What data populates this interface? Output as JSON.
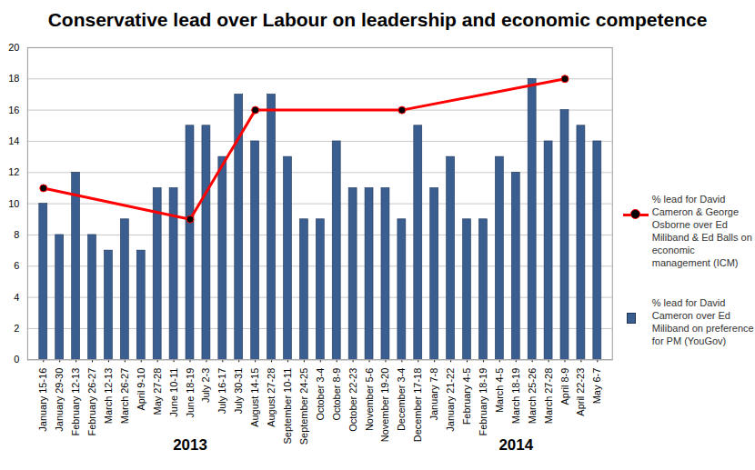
{
  "chart_data": {
    "type": "bar",
    "title": "Conservative lead over Labour on leadership and economic competence",
    "categories": [
      "January 15-16",
      "January 29-30",
      "February 12-13",
      "February 26-27",
      "March 12-13",
      "March 26-27",
      "April 9-10",
      "May 27-28",
      "June 10-11",
      "June 18-19",
      "July 2-3",
      "July 16-17",
      "July 30-31",
      "August 14-15",
      "August 27-28",
      "September 10-11",
      "September 24-25",
      "October 3-4",
      "October 8-9",
      "October 22-23",
      "November 5-6",
      "November 19-20",
      "December 3-4",
      "December 17-18",
      "January 7-8",
      "January 21-22",
      "February 4-5",
      "February 18-19",
      "March 4-5",
      "March 18-19",
      "March 25-26",
      "March 27-28",
      "April 8-9",
      "April 22-23",
      "May 6-7"
    ],
    "series": [
      {
        "name": "% lead for David Cameron & George Osborne over Ed Miliband & Ed Balls on economic management (ICM)",
        "type": "line",
        "color": "#ff0000",
        "marker": "circle",
        "values": [
          11,
          null,
          null,
          null,
          null,
          null,
          null,
          null,
          null,
          9,
          null,
          null,
          null,
          16,
          null,
          null,
          null,
          null,
          null,
          null,
          null,
          null,
          16,
          null,
          null,
          null,
          null,
          null,
          null,
          null,
          null,
          null,
          18,
          null,
          null
        ]
      },
      {
        "name": "% lead for David Cameron over Ed Miliband on preference for PM (YouGov)",
        "type": "bar",
        "color": "#3b5e91",
        "values": [
          10,
          8,
          12,
          8,
          7,
          9,
          7,
          11,
          11,
          15,
          15,
          13,
          17,
          14,
          17,
          13,
          9,
          9,
          14,
          11,
          11,
          11,
          9,
          15,
          11,
          13,
          9,
          9,
          13,
          12,
          18,
          14,
          16,
          15,
          14
        ]
      }
    ],
    "annotations": [
      {
        "text": "2013",
        "category": "June 18-19"
      },
      {
        "text": "2014",
        "category": "March 18-19"
      }
    ],
    "ylim": [
      0,
      20
    ],
    "yticks": [
      0,
      2,
      4,
      6,
      8,
      10,
      12,
      14,
      16,
      18,
      20
    ],
    "grid": true,
    "legend": "right"
  }
}
